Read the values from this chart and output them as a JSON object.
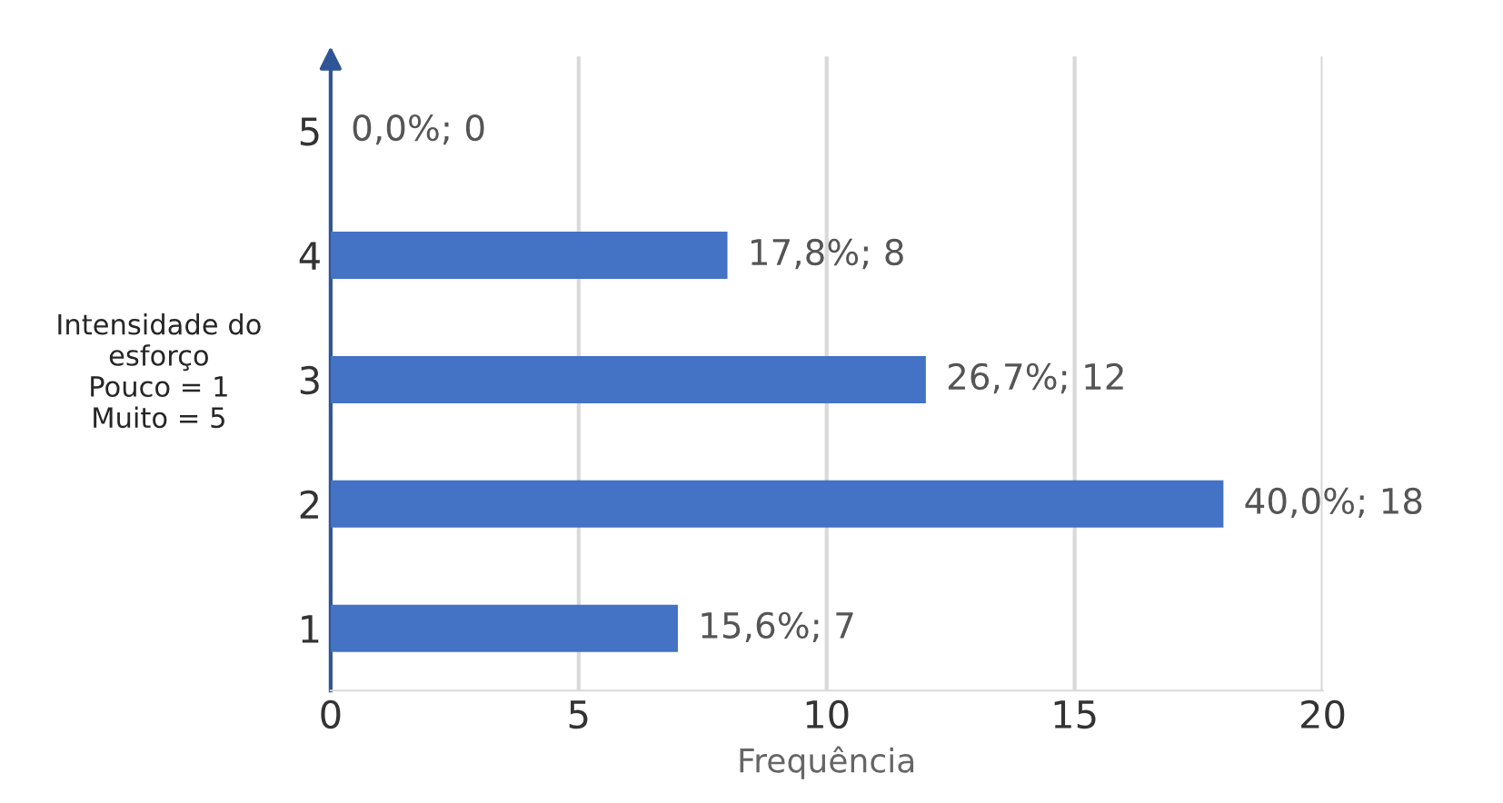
{
  "chart_data": {
    "type": "bar",
    "orientation": "horizontal",
    "categories": [
      "5",
      "4",
      "3",
      "2",
      "1"
    ],
    "values": [
      0,
      8,
      12,
      18,
      7
    ],
    "value_labels": [
      "0,0%; 0",
      "17,8%; 8",
      "26,7%; 12",
      "40,0%; 18",
      "15,6%; 7"
    ],
    "color": "#4472c4",
    "xlim": [
      0,
      20
    ],
    "xticks": [
      0,
      5,
      10,
      15,
      20
    ],
    "xlabel": "Frequência",
    "ylabel": "Intensidade do\nesforço\nPouco = 1\nMuito = 5",
    "grid": "x",
    "legend": false
  }
}
